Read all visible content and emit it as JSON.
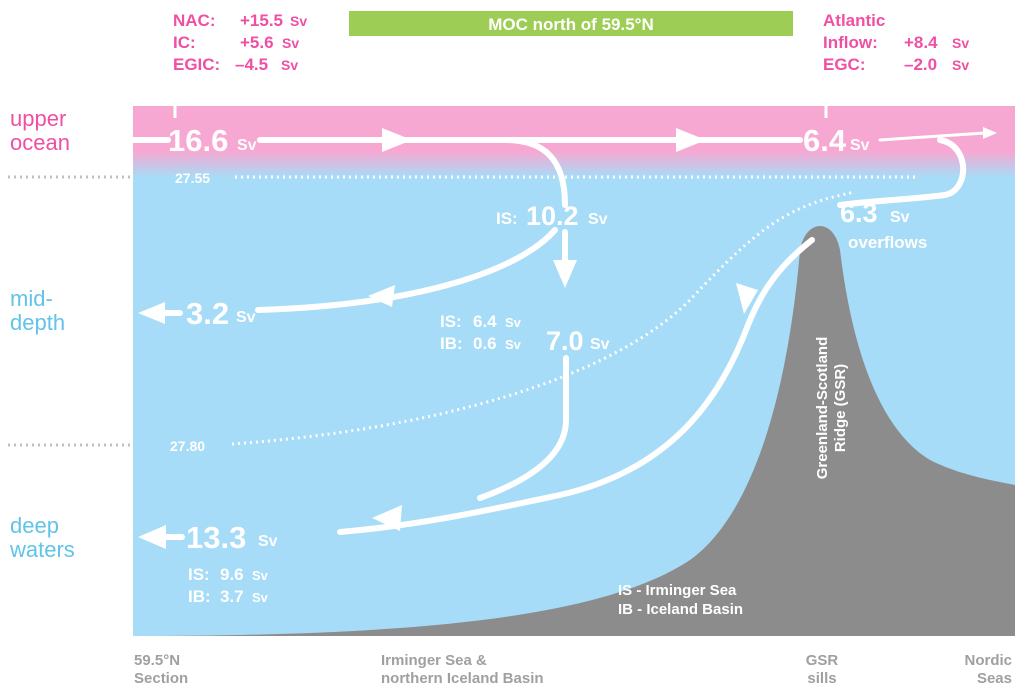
{
  "colors": {
    "pink": "#f04fa3",
    "upper_band": "#f7a8d2",
    "water": "#a6dcf7",
    "ridge": "#8c8c8c",
    "banner": "#9dcd55",
    "blue_text": "#62c3e8",
    "gray_text": "#a0a0a0",
    "arrow": "#ffffff"
  },
  "banner": {
    "label": "MOC north of 59.5°N"
  },
  "unit": "Sv",
  "left_box": {
    "rows": [
      {
        "name": "NAC:",
        "value": "+15.5",
        "unit": "Sv"
      },
      {
        "name": "IC:",
        "value": "+5.6",
        "unit": "Sv"
      },
      {
        "name": "EGIC:",
        "value": "–4.5",
        "unit": "Sv"
      }
    ]
  },
  "right_box": {
    "line1": "Atlantic",
    "rows": [
      {
        "name": "Inflow:",
        "value": "+8.4",
        "unit": "Sv"
      },
      {
        "name": "EGC:",
        "value": "–2.0",
        "unit": "Sv"
      }
    ]
  },
  "layers": {
    "upper": [
      "upper",
      "ocean"
    ],
    "mid": [
      "mid-",
      "depth"
    ],
    "deep": [
      "deep",
      "waters"
    ]
  },
  "isopycnals": {
    "upper": "27.55",
    "lower": "27.80"
  },
  "flows": {
    "upper_in": "16.6",
    "upper_out": "6.4",
    "is_sink_prefix": "IS:",
    "is_sink": "10.2",
    "overflows_value": "6.3",
    "overflows_label": "overflows",
    "mid_out": "3.2",
    "mid_sink": "7.0",
    "mid_sink_parts": [
      {
        "name": "IS:",
        "value": "6.4"
      },
      {
        "name": "IB:",
        "value": "0.6"
      }
    ],
    "deep_out": "13.3",
    "deep_parts": [
      {
        "name": "IS:",
        "value": "9.6"
      },
      {
        "name": "IB:",
        "value": "3.7"
      }
    ]
  },
  "ridge_label": [
    "Greenland-Scotland",
    "Ridge (GSR)"
  ],
  "legend": [
    "IS - Irminger Sea",
    "IB - Iceland Basin"
  ],
  "bottom_labels": {
    "section": [
      "59.5°N",
      "Section"
    ],
    "basin": [
      "Irminger Sea &",
      "northern Iceland Basin"
    ],
    "sills": [
      "GSR",
      "sills"
    ],
    "nordic": [
      "Nordic",
      "Seas"
    ]
  }
}
